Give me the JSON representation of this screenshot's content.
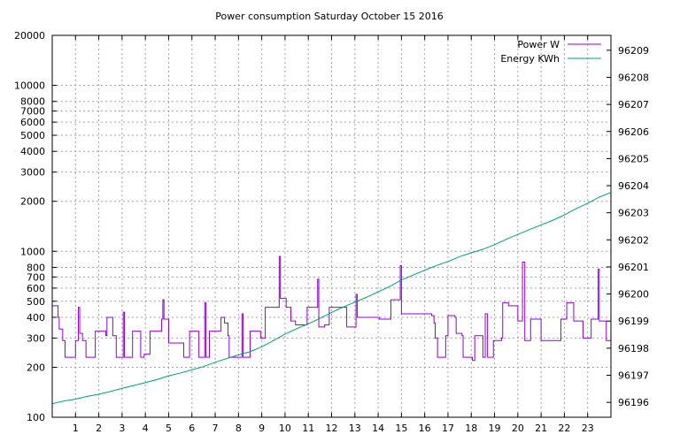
{
  "chart_data": {
    "type": "line",
    "title": "Power consumption Saturday October 15 2016",
    "xlabel": "",
    "ylabel": "",
    "xlim": [
      0,
      24
    ],
    "ylim": [
      100,
      20000
    ],
    "y_scale": "log",
    "y2lim": [
      96195.45,
      96209.55
    ],
    "grid": true,
    "legend_position": "top-right",
    "x_ticks": [
      "1",
      "2",
      "3",
      "4",
      "5",
      "6",
      "7",
      "8",
      "9",
      "10",
      "11",
      "12",
      "13",
      "14",
      "15",
      "16",
      "17",
      "18",
      "19",
      "20",
      "21",
      "22",
      "23"
    ],
    "y_ticks": [
      "100",
      "200",
      "300",
      "400",
      "500",
      "600",
      "700",
      "800",
      "1000",
      "2000",
      "3000",
      "4000",
      "5000",
      "6000",
      "7000",
      "8000",
      "10000",
      "20000"
    ],
    "y2_ticks": [
      "96196",
      "96197",
      "96198",
      "96199",
      "96200",
      "96201",
      "96202",
      "96203",
      "96204",
      "96205",
      "96206",
      "96207",
      "96208",
      "96209"
    ],
    "series": [
      {
        "name": "Power W",
        "axis": "left",
        "color": "#9400d3",
        "step": true,
        "points": [
          [
            0,
            470
          ],
          [
            0.25,
            400
          ],
          [
            0.3,
            340
          ],
          [
            0.45,
            290
          ],
          [
            0.55,
            230
          ],
          [
            0.95,
            230
          ],
          [
            1,
            290
          ],
          [
            1.12,
            460
          ],
          [
            1.18,
            320
          ],
          [
            1.3,
            290
          ],
          [
            1.45,
            230
          ],
          [
            1.7,
            230
          ],
          [
            1.85,
            330
          ],
          [
            2.3,
            310
          ],
          [
            2.35,
            400
          ],
          [
            2.6,
            310
          ],
          [
            2.75,
            230
          ],
          [
            3.05,
            430
          ],
          [
            3.1,
            230
          ],
          [
            3.45,
            330
          ],
          [
            3.8,
            230
          ],
          [
            3.95,
            240
          ],
          [
            4.2,
            330
          ],
          [
            4.7,
            390
          ],
          [
            4.75,
            510
          ],
          [
            4.8,
            390
          ],
          [
            5,
            280
          ],
          [
            5.5,
            280
          ],
          [
            5.65,
            230
          ],
          [
            5.9,
            330
          ],
          [
            6.3,
            230
          ],
          [
            6.55,
            490
          ],
          [
            6.6,
            230
          ],
          [
            6.75,
            330
          ],
          [
            7.25,
            400
          ],
          [
            7.4,
            370
          ],
          [
            7.55,
            310
          ],
          [
            7.6,
            230
          ],
          [
            8.15,
            420
          ],
          [
            8.2,
            230
          ],
          [
            8.35,
            230
          ],
          [
            8.5,
            330
          ],
          [
            8.95,
            300
          ],
          [
            9.15,
            460
          ],
          [
            9.75,
            930
          ],
          [
            9.8,
            520
          ],
          [
            10.05,
            460
          ],
          [
            10.25,
            380
          ],
          [
            10.45,
            360
          ],
          [
            10.9,
            360
          ],
          [
            10.95,
            460
          ],
          [
            11.4,
            680
          ],
          [
            11.45,
            350
          ],
          [
            11.7,
            360
          ],
          [
            11.9,
            460
          ],
          [
            12.6,
            460
          ],
          [
            12.65,
            350
          ],
          [
            13.05,
            550
          ],
          [
            13.1,
            400
          ],
          [
            13.95,
            400
          ],
          [
            14.05,
            390
          ],
          [
            14.5,
            390
          ],
          [
            14.55,
            510
          ],
          [
            14.95,
            820
          ],
          [
            15,
            420
          ],
          [
            16.3,
            410
          ],
          [
            16.4,
            370
          ],
          [
            16.45,
            300
          ],
          [
            16.55,
            230
          ],
          [
            16.8,
            230
          ],
          [
            16.9,
            310
          ],
          [
            17,
            410
          ],
          [
            17.3,
            400
          ],
          [
            17.35,
            320
          ],
          [
            17.6,
            310
          ],
          [
            17.65,
            230
          ],
          [
            18.05,
            220
          ],
          [
            18.15,
            310
          ],
          [
            18.5,
            230
          ],
          [
            18.6,
            420
          ],
          [
            18.7,
            230
          ],
          [
            18.95,
            290
          ],
          [
            19.3,
            300
          ],
          [
            19.35,
            490
          ],
          [
            19.45,
            490
          ],
          [
            19.6,
            470
          ],
          [
            19.9,
            470
          ],
          [
            20,
            380
          ],
          [
            20.2,
            860
          ],
          [
            20.3,
            290
          ],
          [
            20.5,
            290
          ],
          [
            20.55,
            390
          ],
          [
            20.9,
            390
          ],
          [
            21,
            290
          ],
          [
            21.8,
            290
          ],
          [
            21.85,
            390
          ],
          [
            22.05,
            390
          ],
          [
            22.1,
            490
          ],
          [
            22.35,
            490
          ],
          [
            22.4,
            380
          ],
          [
            22.7,
            380
          ],
          [
            22.8,
            300
          ],
          [
            23.1,
            300
          ],
          [
            23.15,
            390
          ],
          [
            23.4,
            390
          ],
          [
            23.45,
            780
          ],
          [
            23.5,
            380
          ],
          [
            23.7,
            380
          ],
          [
            23.8,
            290
          ],
          [
            24,
            290
          ]
        ]
      },
      {
        "name": "Energy KWh",
        "axis": "right",
        "color": "#009e73",
        "step": false,
        "points": [
          [
            0,
            96195.95
          ],
          [
            0.5,
            96196.05
          ],
          [
            1,
            96196.12
          ],
          [
            1.5,
            96196.22
          ],
          [
            2,
            96196.3
          ],
          [
            2.5,
            96196.4
          ],
          [
            3,
            96196.52
          ],
          [
            3.5,
            96196.62
          ],
          [
            4,
            96196.73
          ],
          [
            4.5,
            96196.84
          ],
          [
            5,
            96196.98
          ],
          [
            5.5,
            96197.08
          ],
          [
            6,
            96197.2
          ],
          [
            6.5,
            96197.32
          ],
          [
            7,
            96197.48
          ],
          [
            7.5,
            96197.62
          ],
          [
            8,
            96197.75
          ],
          [
            8.5,
            96197.87
          ],
          [
            9,
            96198.05
          ],
          [
            9.5,
            96198.28
          ],
          [
            10,
            96198.52
          ],
          [
            10.5,
            96198.72
          ],
          [
            11,
            96198.9
          ],
          [
            11.5,
            96199.1
          ],
          [
            12,
            96199.32
          ],
          [
            12.5,
            96199.52
          ],
          [
            13,
            96199.7
          ],
          [
            13.5,
            96199.88
          ],
          [
            14,
            96200.08
          ],
          [
            14.5,
            96200.28
          ],
          [
            15,
            96200.52
          ],
          [
            15.5,
            96200.7
          ],
          [
            16,
            96200.88
          ],
          [
            16.5,
            96201.05
          ],
          [
            17,
            96201.2
          ],
          [
            17.5,
            96201.38
          ],
          [
            18,
            96201.52
          ],
          [
            18.5,
            96201.65
          ],
          [
            19,
            96201.82
          ],
          [
            19.5,
            96202.02
          ],
          [
            20,
            96202.2
          ],
          [
            20.5,
            96202.38
          ],
          [
            21,
            96202.55
          ],
          [
            21.5,
            96202.72
          ],
          [
            22,
            96202.92
          ],
          [
            22.5,
            96203.15
          ],
          [
            23,
            96203.35
          ],
          [
            23.5,
            96203.58
          ],
          [
            24,
            96203.75
          ]
        ]
      }
    ]
  }
}
